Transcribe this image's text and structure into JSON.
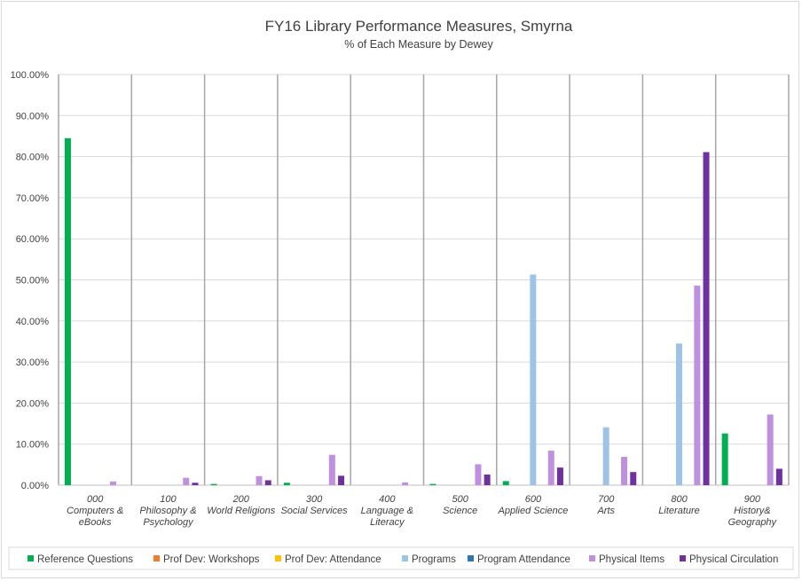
{
  "chart_data": {
    "type": "bar",
    "title": "FY16 Library Performance Measures, Smyrna",
    "subtitle": "% of Each Measure by Dewey",
    "xlabel": "",
    "ylabel": "",
    "ylim": [
      0,
      100
    ],
    "y_ticks": [
      "0.00%",
      "10.00%",
      "20.00%",
      "30.00%",
      "40.00%",
      "50.00%",
      "60.00%",
      "70.00%",
      "80.00%",
      "90.00%",
      "100.00%"
    ],
    "grid": true,
    "legend_position": "bottom",
    "categories": [
      [
        "000",
        "Computers &",
        "eBooks"
      ],
      [
        "100",
        "Philosophy &",
        "Psychology"
      ],
      [
        "200",
        "World Religions"
      ],
      [
        "300",
        "Social Services"
      ],
      [
        "400",
        "Language &",
        "Literacy"
      ],
      [
        "500",
        "Science"
      ],
      [
        "600",
        "Applied Science"
      ],
      [
        "700",
        "Arts"
      ],
      [
        "800",
        "Literature"
      ],
      [
        "900",
        "History&",
        "Geography"
      ]
    ],
    "series": [
      {
        "name": "Reference Questions",
        "color": "#00b050",
        "values": [
          84.5,
          0,
          0.3,
          0.6,
          0,
          0.3,
          1.0,
          0,
          0,
          12.6
        ]
      },
      {
        "name": "Prof Dev: Workshops",
        "color": "#ed7d31",
        "values": [
          0,
          0,
          0,
          0,
          0,
          0,
          0,
          0,
          0,
          0
        ]
      },
      {
        "name": "Prof Dev: Attendance",
        "color": "#ffc000",
        "values": [
          0,
          0,
          0,
          0,
          0,
          0,
          0,
          0,
          0,
          0
        ]
      },
      {
        "name": "Programs",
        "color": "#9dc3e6",
        "values": [
          0,
          0,
          0,
          0,
          0,
          0,
          51.3,
          14.1,
          34.5,
          0
        ]
      },
      {
        "name": "Program Attendance",
        "color": "#2e75b6",
        "values": [
          0,
          0,
          0,
          0,
          0,
          0,
          0,
          0,
          0,
          0
        ]
      },
      {
        "name": "Physical Items",
        "color": "#bf8fe0",
        "values": [
          0.9,
          1.8,
          2.2,
          7.4,
          0.7,
          5.1,
          8.4,
          6.9,
          48.6,
          17.2
        ]
      },
      {
        "name": "Physical Circulation",
        "color": "#7030a0",
        "values": [
          0,
          0.6,
          1.2,
          2.3,
          0,
          2.6,
          4.3,
          3.2,
          81.1,
          4.0
        ]
      }
    ]
  }
}
